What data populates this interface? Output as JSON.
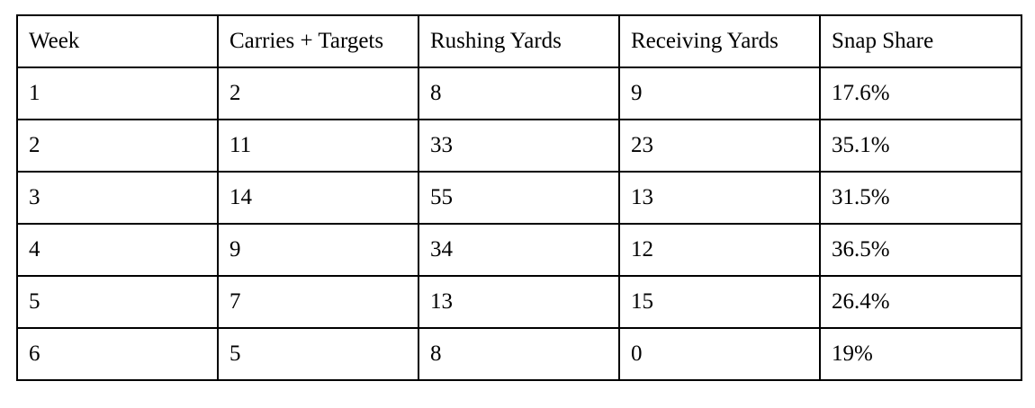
{
  "table": {
    "headers": [
      "Week",
      "Carries + Targets",
      "Rushing Yards",
      "Receiving Yards",
      "Snap Share"
    ],
    "rows": [
      [
        "1",
        "2",
        "8",
        "9",
        "17.6%"
      ],
      [
        "2",
        "11",
        "33",
        "23",
        "35.1%"
      ],
      [
        "3",
        "14",
        "55",
        "13",
        "31.5%"
      ],
      [
        "4",
        "9",
        "34",
        "12",
        "36.5%"
      ],
      [
        "5",
        "7",
        "13",
        "15",
        "26.4%"
      ],
      [
        "6",
        "5",
        "8",
        "0",
        "19%"
      ]
    ]
  }
}
